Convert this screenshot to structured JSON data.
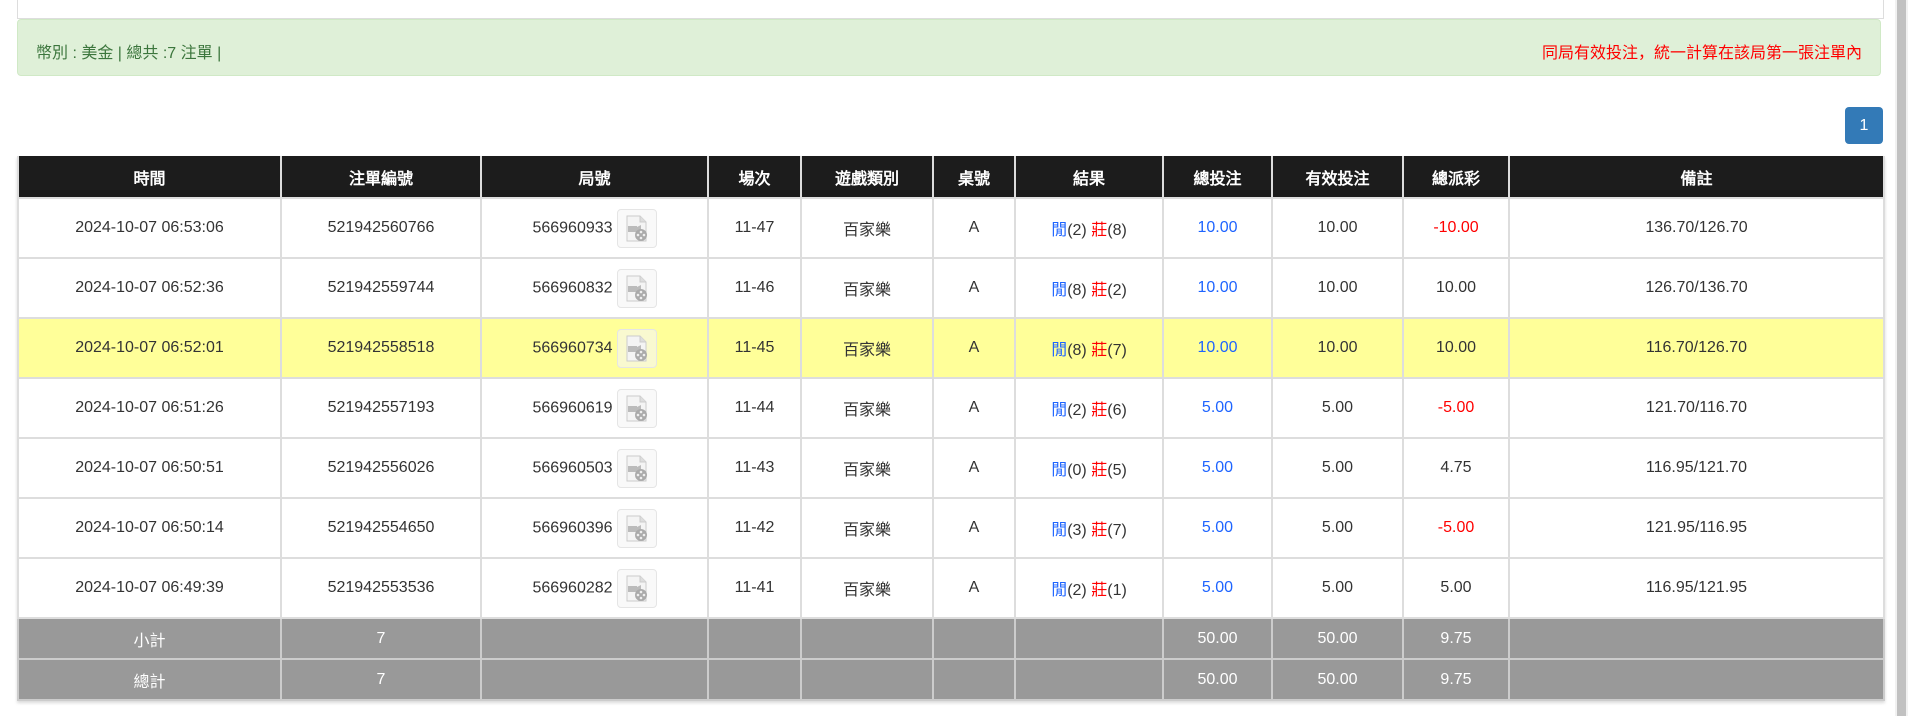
{
  "summary": {
    "left_text": "幣別 : 美金 | 總共 :7 注單 |",
    "right_text": "同局有效投注，統一計算在該局第一張注單內"
  },
  "pagination": {
    "current_page": "1"
  },
  "table": {
    "headers": [
      "時間",
      "注單編號",
      "局號",
      "場次",
      "遊戲類別",
      "桌號",
      "結果",
      "總投注",
      "有效投注",
      "總派彩",
      "備註"
    ],
    "rows": [
      {
        "time": "2024-10-07 06:53:06",
        "bet_id": "521942560766",
        "round": "566960933",
        "shoe": "11-47",
        "game": "百家樂",
        "table": "A",
        "player_label": "閒",
        "player": "(2)",
        "banker_label": "莊",
        "banker": "(8)",
        "total_bet": "10.00",
        "valid_bet": "10.00",
        "payout": "-10.00",
        "payout_negative": true,
        "note": "136.70/126.70",
        "highlight": false
      },
      {
        "time": "2024-10-07 06:52:36",
        "bet_id": "521942559744",
        "round": "566960832",
        "shoe": "11-46",
        "game": "百家樂",
        "table": "A",
        "player_label": "閒",
        "player": "(8)",
        "banker_label": "莊",
        "banker": "(2)",
        "total_bet": "10.00",
        "valid_bet": "10.00",
        "payout": "10.00",
        "payout_negative": false,
        "note": "126.70/136.70",
        "highlight": false
      },
      {
        "time": "2024-10-07 06:52:01",
        "bet_id": "521942558518",
        "round": "566960734",
        "shoe": "11-45",
        "game": "百家樂",
        "table": "A",
        "player_label": "閒",
        "player": "(8)",
        "banker_label": "莊",
        "banker": "(7)",
        "total_bet": "10.00",
        "valid_bet": "10.00",
        "payout": "10.00",
        "payout_negative": false,
        "note": "116.70/126.70",
        "highlight": true
      },
      {
        "time": "2024-10-07 06:51:26",
        "bet_id": "521942557193",
        "round": "566960619",
        "shoe": "11-44",
        "game": "百家樂",
        "table": "A",
        "player_label": "閒",
        "player": "(2)",
        "banker_label": "莊",
        "banker": "(6)",
        "total_bet": "5.00",
        "valid_bet": "5.00",
        "payout": "-5.00",
        "payout_negative": true,
        "note": "121.70/116.70",
        "highlight": false
      },
      {
        "time": "2024-10-07 06:50:51",
        "bet_id": "521942556026",
        "round": "566960503",
        "shoe": "11-43",
        "game": "百家樂",
        "table": "A",
        "player_label": "閒",
        "player": "(0)",
        "banker_label": "莊",
        "banker": "(5)",
        "total_bet": "5.00",
        "valid_bet": "5.00",
        "payout": "4.75",
        "payout_negative": false,
        "note": "116.95/121.70",
        "highlight": false
      },
      {
        "time": "2024-10-07 06:50:14",
        "bet_id": "521942554650",
        "round": "566960396",
        "shoe": "11-42",
        "game": "百家樂",
        "table": "A",
        "player_label": "閒",
        "player": "(3)",
        "banker_label": "莊",
        "banker": "(7)",
        "total_bet": "5.00",
        "valid_bet": "5.00",
        "payout": "-5.00",
        "payout_negative": true,
        "note": "121.95/116.95",
        "highlight": false
      },
      {
        "time": "2024-10-07 06:49:39",
        "bet_id": "521942553536",
        "round": "566960282",
        "shoe": "11-41",
        "game": "百家樂",
        "table": "A",
        "player_label": "閒",
        "player": "(2)",
        "banker_label": "莊",
        "banker": "(1)",
        "total_bet": "5.00",
        "valid_bet": "5.00",
        "payout": "5.00",
        "payout_negative": false,
        "note": "116.95/121.95",
        "highlight": false
      }
    ],
    "subtotal": {
      "label": "小計",
      "count": "7",
      "total_bet": "50.00",
      "valid_bet": "50.00",
      "payout": "9.75"
    },
    "total": {
      "label": "總計",
      "count": "7",
      "total_bet": "50.00",
      "valid_bet": "50.00",
      "payout": "9.75"
    }
  },
  "colors": {
    "header_bg": "#1c1c1c",
    "highlight_row": "#ffff99",
    "summary_row": "#999999",
    "alert_bg": "#dff0d8",
    "player": "#1e64ff",
    "banker": "#ff0000",
    "negative": "#ff0000",
    "pager": "#337ab7"
  },
  "icons": {
    "replay": "video-replay-icon"
  }
}
